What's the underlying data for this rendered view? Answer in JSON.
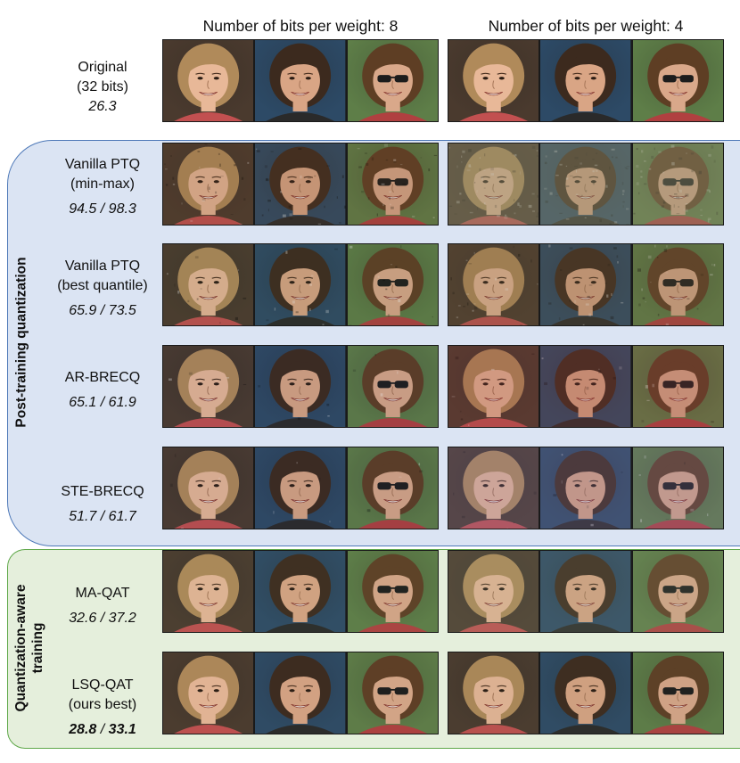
{
  "figure": {
    "col_headers": [
      "Number of bits per weight: 8",
      "Number of bits per weight: 4"
    ],
    "section_ptq": "Post-training quantization",
    "section_qat": [
      "Quantization-aware",
      "training"
    ],
    "rows": [
      {
        "lines": [
          "Original",
          "(32 bits)"
        ],
        "score_a": "26.3",
        "sep": "",
        "score_b": "",
        "bold": false
      },
      {
        "lines": [
          "Vanilla PTQ",
          "(min-max)"
        ],
        "score_a": "94.5",
        "sep": " / ",
        "score_b": "98.3",
        "bold": false
      },
      {
        "lines": [
          "Vanilla PTQ",
          "(best quantile)"
        ],
        "score_a": "65.9",
        "sep": " /  ",
        "score_b": "73.5",
        "bold": false
      },
      {
        "lines": [
          "AR-BRECQ"
        ],
        "score_a": "65.1",
        "sep": " / ",
        "score_b": "61.9",
        "bold": false
      },
      {
        "lines": [
          "STE-BRECQ"
        ],
        "score_a": "51.7",
        "sep": " / ",
        "score_b": "61.7",
        "bold": false
      },
      {
        "lines": [
          "MA-QAT"
        ],
        "score_a": "32.6",
        "sep": " / ",
        "score_b": "37.2",
        "bold": false
      },
      {
        "lines": [
          "LSQ-QAT",
          "(ours best)"
        ],
        "score_a": "28.8",
        "sep": " / ",
        "score_b": "33.1",
        "bold": true
      }
    ],
    "subjects": [
      {
        "hair": "#b08a5a",
        "skin": "#e8b898",
        "bg": "#4a3a2e",
        "glasses": false,
        "shirt": "#c25050"
      },
      {
        "hair": "#3c2a1e",
        "skin": "#d9a585",
        "bg": "#2d4a66",
        "glasses": false,
        "shirt": "#2a2a2a"
      },
      {
        "hair": "#5e3e24",
        "skin": "#d9a88a",
        "bg": "#5e7e48",
        "glasses": true,
        "shirt": "#b04040"
      }
    ],
    "variants_8bit": [
      {
        "tint": "#000000",
        "opacity": 0,
        "noise": 0
      },
      {
        "tint": "#6a4a2a",
        "opacity": 0.18,
        "noise": 0.35
      },
      {
        "tint": "#4a5a3a",
        "opacity": 0.12,
        "noise": 0.15
      },
      {
        "tint": "#3a3a5a",
        "opacity": 0.1,
        "noise": 0.05
      },
      {
        "tint": "#3a3a5a",
        "opacity": 0.1,
        "noise": 0.05
      },
      {
        "tint": "#6a7a5a",
        "opacity": 0.08,
        "noise": 0
      },
      {
        "tint": "#5a6a4a",
        "opacity": 0.05,
        "noise": 0
      }
    ],
    "variants_4bit": [
      {
        "tint": "#000000",
        "opacity": 0,
        "noise": 0
      },
      {
        "tint": "#8a8a6a",
        "opacity": 0.45,
        "noise": 0.7
      },
      {
        "tint": "#6a5a3a",
        "opacity": 0.25,
        "noise": 0.3
      },
      {
        "tint": "#8a3a3a",
        "opacity": 0.25,
        "noise": 0.1
      },
      {
        "tint": "#7a6a9a",
        "opacity": 0.25,
        "noise": 0.1
      },
      {
        "tint": "#8a9a7a",
        "opacity": 0.18,
        "noise": 0
      },
      {
        "tint": "#5a6a4a",
        "opacity": 0.08,
        "noise": 0
      }
    ]
  }
}
